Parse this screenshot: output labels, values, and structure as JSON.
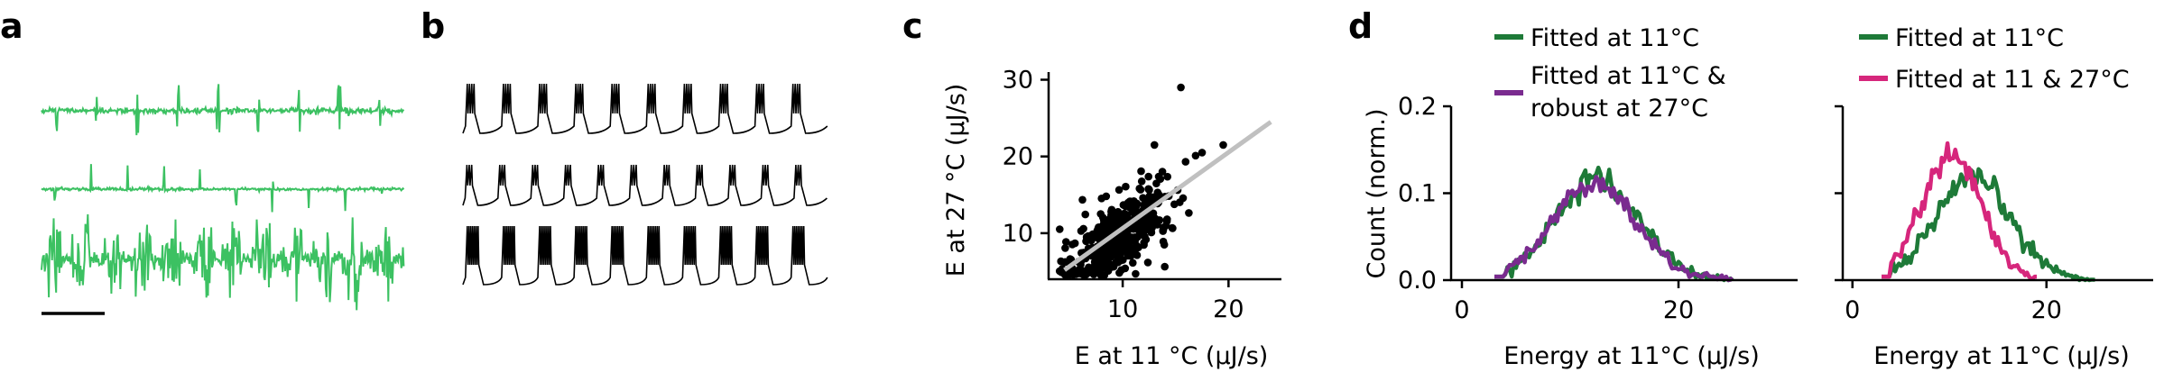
{
  "panels": {
    "a": {
      "label": "a"
    },
    "b": {
      "label": "b"
    },
    "c": {
      "label": "c"
    },
    "d": {
      "label": "d"
    }
  },
  "colors": {
    "trace_green": "#3cc162",
    "voltage_black": "#000000",
    "scatter_black": "#000000",
    "fit_gray": "#c0c0c0",
    "dark_green": "#1e7a38",
    "purple": "#7a2b8f",
    "magenta": "#d6267c"
  },
  "chart_data": [
    {
      "panel": "a",
      "type": "line",
      "description_traces": [
        {
          "bursts_count": 9,
          "style": "moderate",
          "noise": "low"
        },
        {
          "bursts_count": 10,
          "style": "short",
          "noise": "low"
        },
        {
          "bursts_count": 12,
          "style": "dense",
          "noise": "high"
        }
      ],
      "scale_bar": true
    },
    {
      "panel": "b",
      "type": "line",
      "traces": [
        {
          "bursts_count": 10,
          "spikes_per_burst": 4
        },
        {
          "bursts_count": 11,
          "spikes_per_burst": 3
        },
        {
          "bursts_count": 10,
          "spikes_per_burst": 7
        }
      ]
    },
    {
      "panel": "c",
      "type": "scatter",
      "xlabel": "E at 11 °C (μJ/s)",
      "ylabel": "E at 27 °C (μJ/s)",
      "xlim": [
        3,
        25
      ],
      "ylim": [
        4,
        31
      ],
      "xticks": [
        10,
        20
      ],
      "yticks": [
        10,
        20,
        30
      ],
      "n_points": 420,
      "cluster_center": [
        9.5,
        9.5
      ],
      "outliers": [
        [
          15.5,
          29
        ],
        [
          17.5,
          20.5
        ],
        [
          19.5,
          21.5
        ],
        [
          13,
          21.5
        ]
      ],
      "fit_line": {
        "x": [
          4.5,
          24
        ],
        "y": [
          5.2,
          24.5
        ]
      }
    },
    {
      "panel": "d-left",
      "type": "line",
      "xlabel": "Energy at 11°C (μJ/s)",
      "ylabel": "Count (norm.)",
      "xlim": [
        -1,
        31
      ],
      "ylim": [
        0,
        0.2
      ],
      "xticks": [
        0,
        20
      ],
      "yticks": [
        0.0,
        0.1,
        0.2
      ],
      "ytick_labels": [
        "0.0",
        "0.1",
        "0.2"
      ],
      "legend": [
        "Fitted at 11°C",
        "Fitted at 11°C &",
        "robust at 27°C"
      ],
      "series": [
        {
          "name": "Fitted at 11°C",
          "color": "#1e7a38",
          "mu": 12.5,
          "sigma": 3.9,
          "peak": 0.115,
          "xmin": 3,
          "xmax": 25
        },
        {
          "name": "Fitted at 11°C & robust at 27°C",
          "color": "#7a2b8f",
          "mu": 12.2,
          "sigma": 3.9,
          "peak": 0.11,
          "xmin": 3,
          "xmax": 25
        }
      ]
    },
    {
      "panel": "d-right",
      "type": "line",
      "xlabel": "Energy at 11°C (μJ/s)",
      "xlim": [
        -1,
        31
      ],
      "ylim": [
        0,
        0.2
      ],
      "xticks": [
        0,
        20
      ],
      "legend": [
        "Fitted at 11°C",
        "Fitted at 11 & 27°C"
      ],
      "series": [
        {
          "name": "Fitted at 11°C",
          "color": "#1e7a38",
          "mu": 12.5,
          "sigma": 3.9,
          "peak": 0.115,
          "xmin": 3,
          "xmax": 25
        },
        {
          "name": "Fitted at 11 & 27°C",
          "color": "#d6267c",
          "mu": 10.2,
          "sigma": 3.1,
          "peak": 0.145,
          "xmin": 3,
          "xmax": 19
        }
      ]
    }
  ]
}
